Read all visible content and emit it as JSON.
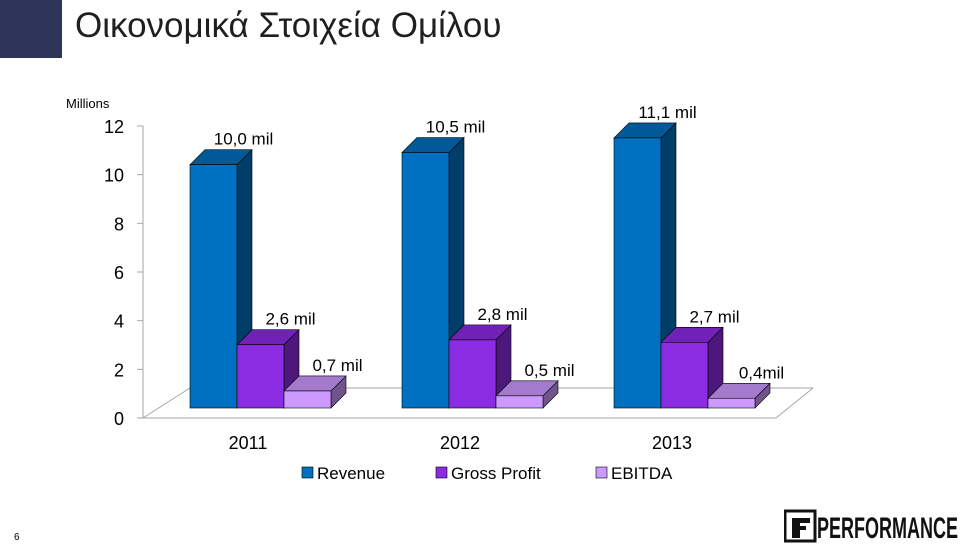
{
  "slide": {
    "title": "Οικονομικά Στοιχεία Ομίλου",
    "page_number": "6",
    "logo_text": "PERFORMANCE"
  },
  "colors": {
    "revenue": "#0070c0",
    "gross_profit": "#8b2be2",
    "ebitda": "#cc99ff",
    "title_bar": "#2e3558"
  },
  "chart_data": {
    "type": "bar",
    "unit_label": "Millions",
    "categories": [
      "2011",
      "2012",
      "2013"
    ],
    "series": [
      {
        "name": "Revenue",
        "values": [
          10.0,
          10.5,
          11.1
        ],
        "labels": [
          "10,0 mil",
          "10,5 mil",
          "11,1 mil"
        ]
      },
      {
        "name": "Gross Profit",
        "values": [
          2.6,
          2.8,
          2.7
        ],
        "labels": [
          "2,6 mil",
          "2,8 mil",
          "2,7 mil"
        ]
      },
      {
        "name": "EBITDA",
        "values": [
          0.7,
          0.5,
          0.4
        ],
        "labels": [
          "0,7 mil",
          "0,5 mil",
          "0,4mil"
        ]
      }
    ],
    "ylim": [
      0,
      12
    ],
    "yticks": [
      "0",
      "2",
      "4",
      "6",
      "8",
      "10",
      "12"
    ],
    "legend_position": "bottom",
    "style": "3d"
  }
}
